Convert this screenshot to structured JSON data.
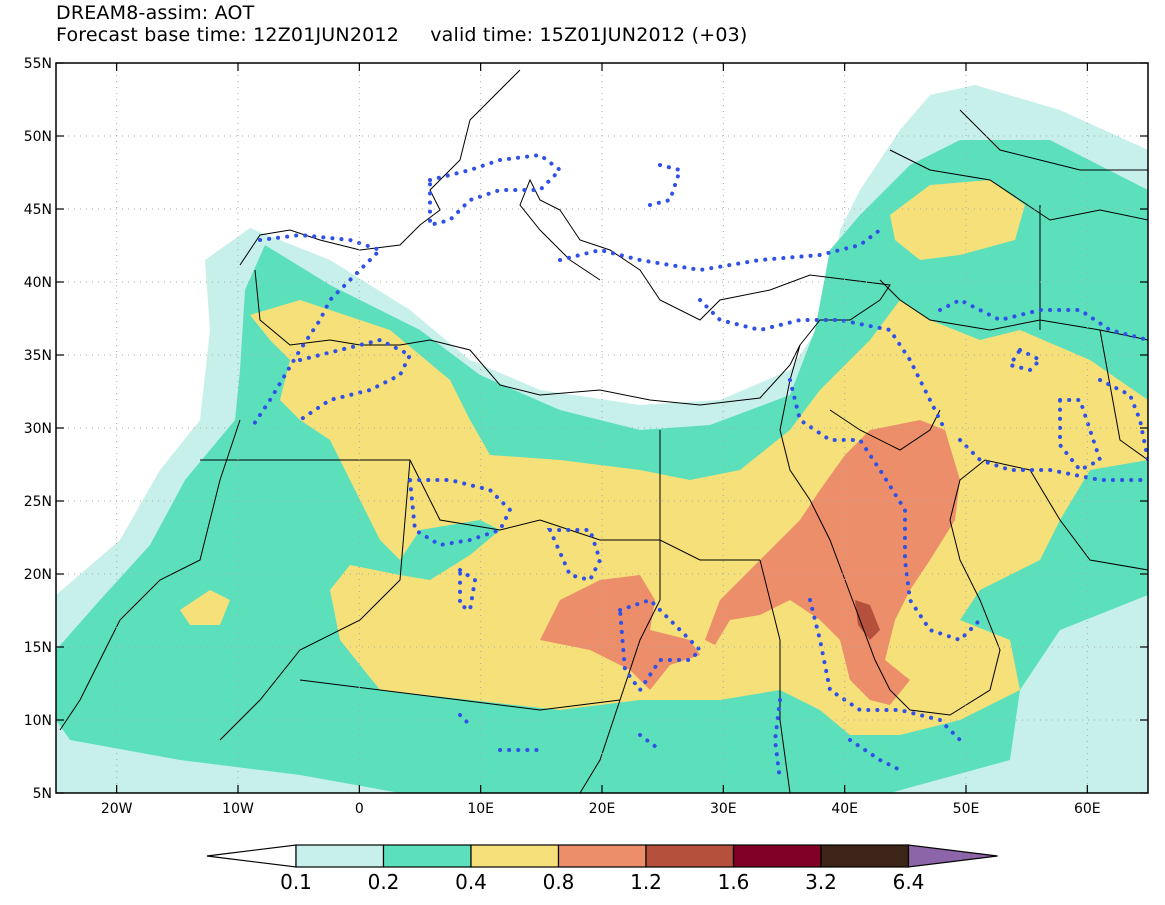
{
  "title": {
    "line1": "DREAM8-assim: AOT",
    "base_label": "Forecast base time: 12Z01JUN2012",
    "valid_label": "valid time: 15Z01JUN2012 (+03)"
  },
  "map": {
    "lon_labels": [
      {
        "lon": -20,
        "text": "20W"
      },
      {
        "lon": -10,
        "text": "10W"
      },
      {
        "lon": 0,
        "text": "0"
      },
      {
        "lon": 10,
        "text": "10E"
      },
      {
        "lon": 20,
        "text": "20E"
      },
      {
        "lon": 30,
        "text": "30E"
      },
      {
        "lon": 40,
        "text": "40E"
      },
      {
        "lon": 50,
        "text": "50E"
      },
      {
        "lon": 60,
        "text": "60E"
      }
    ],
    "lat_labels": [
      {
        "lat": 55,
        "text": "55N"
      },
      {
        "lat": 50,
        "text": "50N"
      },
      {
        "lat": 45,
        "text": "45N"
      },
      {
        "lat": 40,
        "text": "40N"
      },
      {
        "lat": 35,
        "text": "35N"
      },
      {
        "lat": 30,
        "text": "30N"
      },
      {
        "lat": 25,
        "text": "25N"
      },
      {
        "lat": 20,
        "text": "20N"
      },
      {
        "lat": 15,
        "text": "15N"
      },
      {
        "lat": 10,
        "text": "10N"
      },
      {
        "lat": 5,
        "text": "5N"
      }
    ],
    "lon_range": [
      -25,
      65
    ],
    "lat_range": [
      5,
      55
    ]
  },
  "colorbar": {
    "colors": [
      "#c8f0ea",
      "#5ce0bc",
      "#f5e07a",
      "#ec8e6a",
      "#b4503c",
      "#800028",
      "#3c2418",
      "#8c64a8"
    ],
    "labels": [
      "0.1",
      "0.2",
      "0.4",
      "0.8",
      "1.2",
      "1.6",
      "3.2",
      "6.4"
    ]
  }
}
